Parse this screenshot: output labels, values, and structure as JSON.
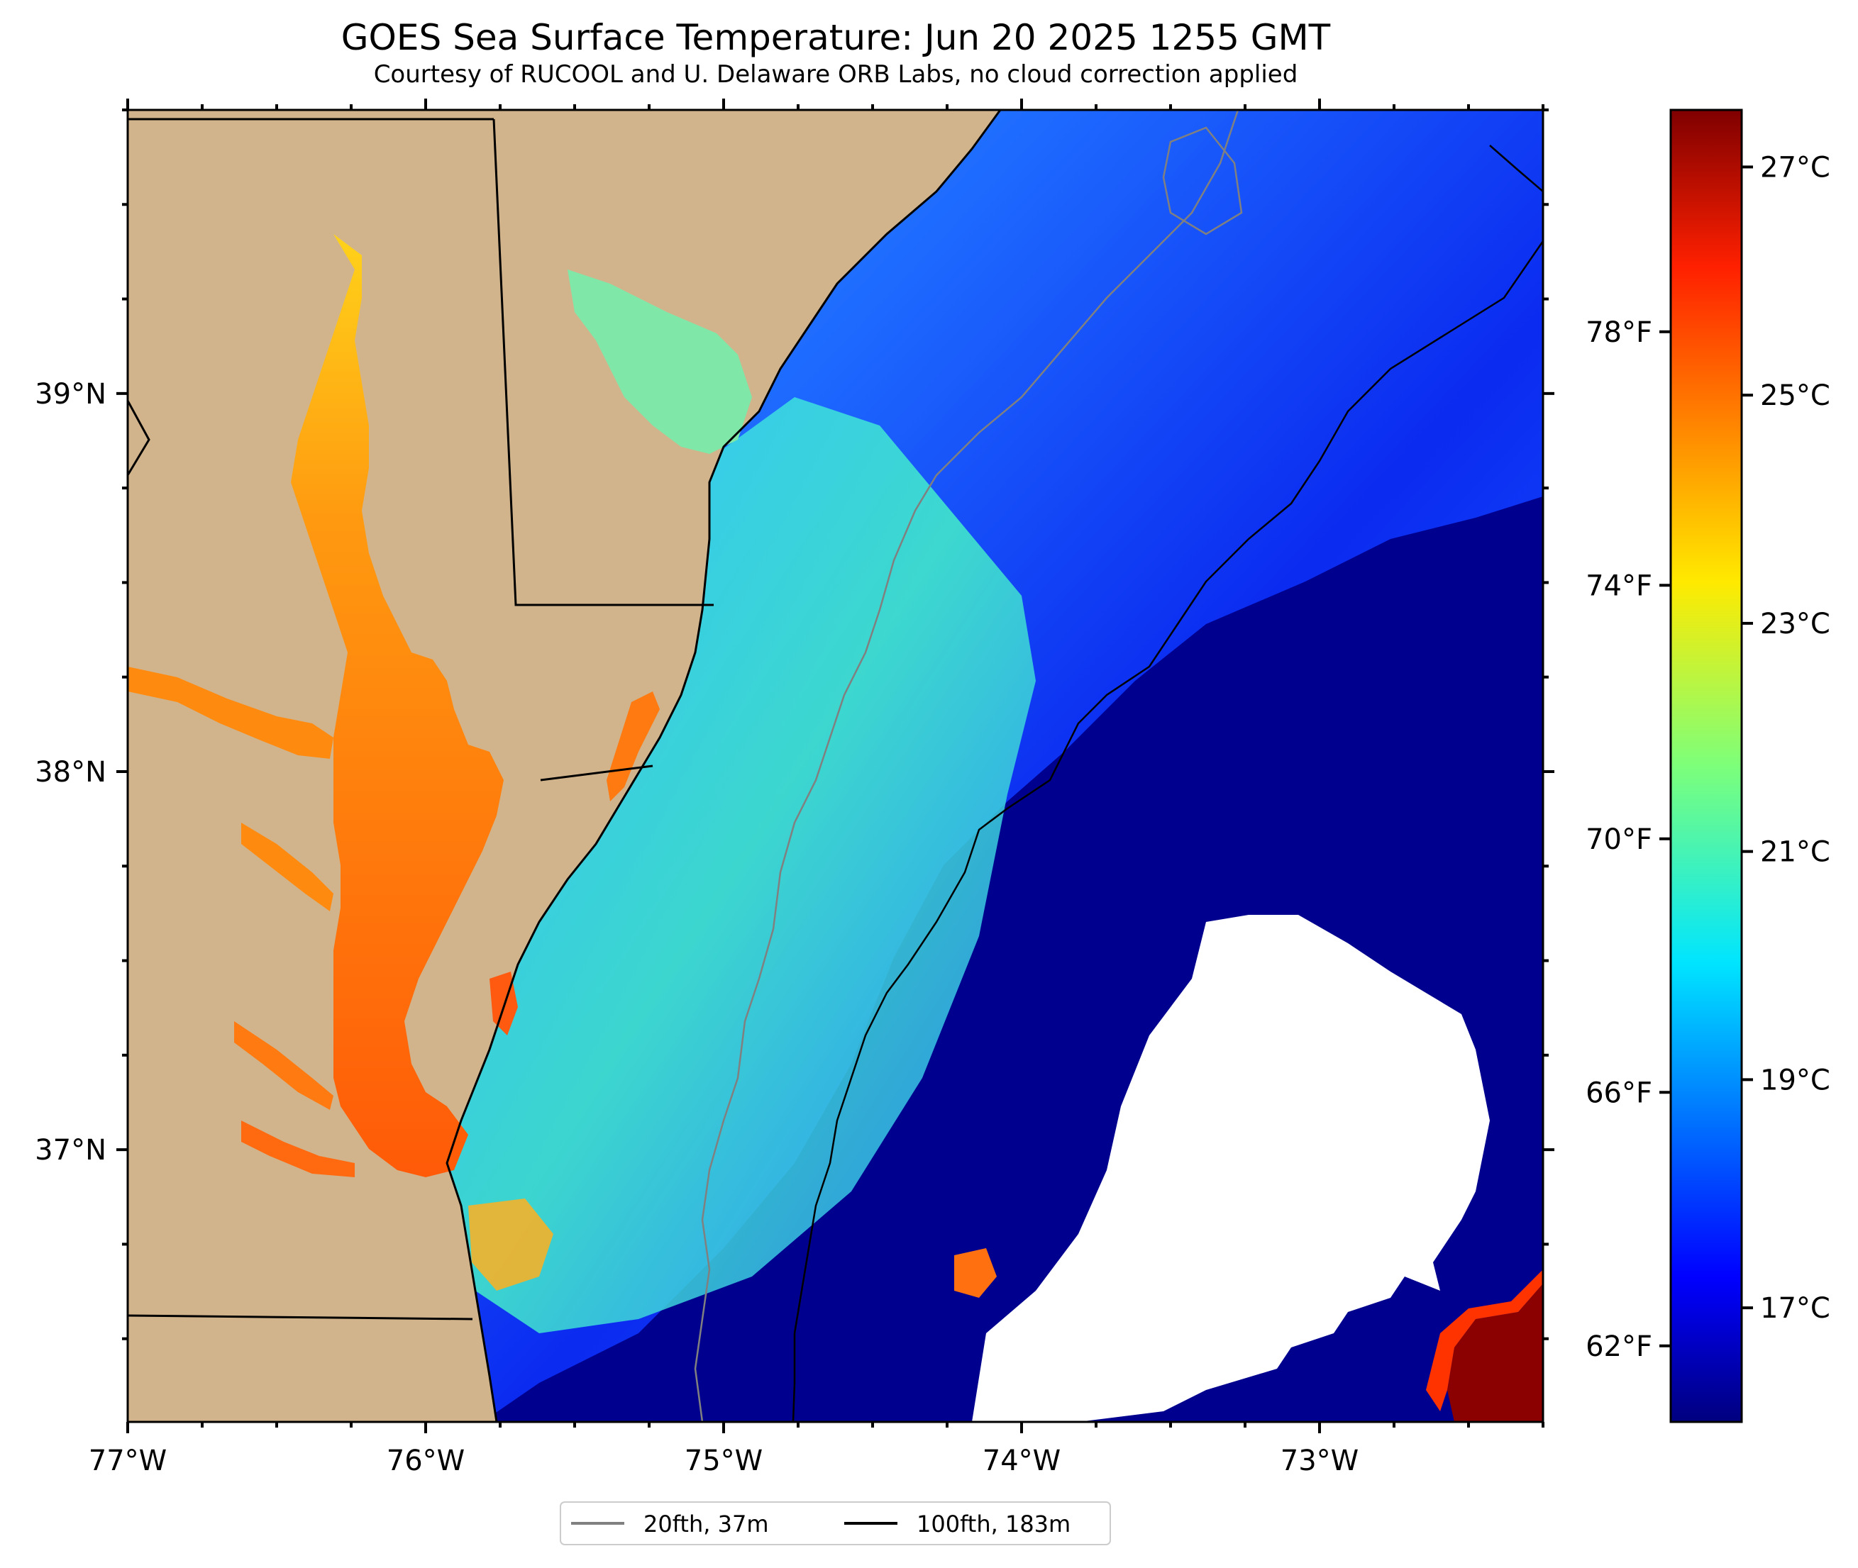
{
  "map": {
    "title": "GOES Sea Surface Temperature: Jun 20 2025 1255 GMT",
    "subtitle": "Courtesy of RUCOOL and U. Delaware ORB Labs, no cloud correction applied",
    "lon_labels": [
      "77°W",
      "76°W",
      "75°W",
      "74°W",
      "73°W"
    ],
    "lat_labels": [
      "39°N",
      "38°N",
      "37°N"
    ],
    "extent": {
      "lon": [
        -77.0,
        -72.25
      ],
      "lat": [
        36.28,
        39.75
      ]
    },
    "land_color": "#d2b48c",
    "no_data_color": "#ffffff",
    "legend": {
      "items": [
        {
          "label": "20fth, 37m",
          "color": "#808080"
        },
        {
          "label": "100fth, 183m",
          "color": "#000000"
        }
      ]
    }
  },
  "colorbar": {
    "celsius_labels": [
      "27°C",
      "25°C",
      "23°C",
      "21°C",
      "19°C",
      "17°C"
    ],
    "fahrenheit_labels": [
      "78°F",
      "74°F",
      "70°F",
      "66°F",
      "62°F"
    ],
    "range_c": [
      16.0,
      27.5
    ],
    "colormap": "jet"
  }
}
